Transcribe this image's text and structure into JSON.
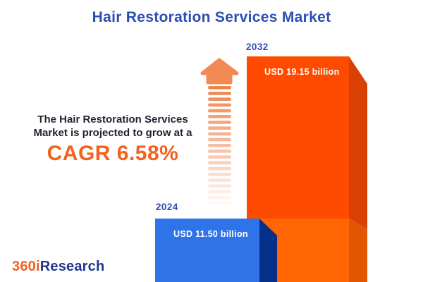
{
  "title": "Hair Restoration Services Market",
  "description": {
    "line1": "The Hair Restoration Services",
    "line2": "Market is projected to grow at a",
    "cagr_text": "CAGR 6.58%"
  },
  "chart_data": {
    "type": "bar",
    "title": "Hair Restoration Services Market",
    "categories": [
      "2024",
      "2032"
    ],
    "values": [
      11.5,
      19.15
    ],
    "unit": "USD billion",
    "value_labels": [
      "USD 11.50 billion",
      "USD 19.15 billion"
    ],
    "cagr_percent": 6.58,
    "bar_colors": [
      "#2E74E8",
      "#FF4B00"
    ],
    "legend": false,
    "axes_shown": false,
    "style": "3d-infographic-bars"
  },
  "bars": [
    {
      "year": "2024",
      "value_label": "USD 11.50 billion"
    },
    {
      "year": "2032",
      "value_label": "USD 19.15 billion"
    }
  ],
  "logo": {
    "part1": "360i",
    "part2": "Research"
  },
  "colors": {
    "title_blue": "#2B4EB2",
    "body_text": "#1D2430",
    "cagr_orange": "#F4611D",
    "bar_blue_front": "#2E74E8",
    "bar_blue_side": "#05308A",
    "bar_orange_front_top": "#FF4B00",
    "bar_orange_front_bottom": "#FF6502",
    "bar_orange_side_top": "#D84103",
    "bar_orange_side_bottom": "#E05602",
    "arrow_head": "#F28A55",
    "arrow_stripe": "#F0824B",
    "logo_orange": "#F26222",
    "logo_navy": "#21378F",
    "background": "#FFFFFF"
  }
}
